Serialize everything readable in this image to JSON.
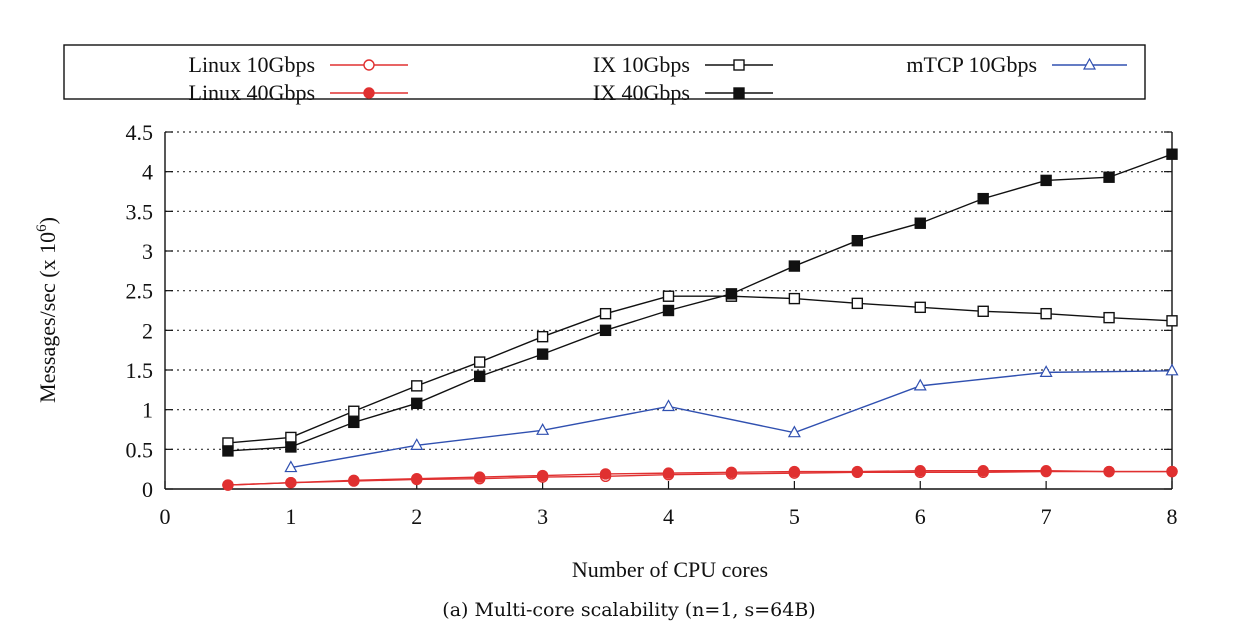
{
  "chart_data": {
    "type": "line",
    "caption": "(a) Multi-core scalability (n=1, s=64B)",
    "xlabel": "Number of CPU cores",
    "ylabel": "Messages/sec (x 10",
    "ylabel_superscript": "6",
    "ylabel_suffix": ")",
    "xlim": [
      0,
      8
    ],
    "ylim": [
      0,
      4.5
    ],
    "xticks": [
      "0",
      "1",
      "2",
      "3",
      "4",
      "5",
      "6",
      "7",
      "8"
    ],
    "yticks": [
      "0",
      "0.5",
      "1",
      "1.5",
      "2",
      "2.5",
      "3",
      "3.5",
      "4",
      "4.5"
    ],
    "grid": "horizontal dotted",
    "legend_placement": "top",
    "series": [
      {
        "name": "Linux 10Gbps",
        "color": "#e03030",
        "marker": "open-circle",
        "x": [
          0.5,
          1,
          1.5,
          2,
          2.5,
          3,
          3.5,
          4,
          4.5,
          5,
          5.5,
          6,
          6.5,
          7,
          7.5,
          8
        ],
        "values": [
          0.05,
          0.08,
          0.1,
          0.12,
          0.13,
          0.15,
          0.16,
          0.18,
          0.19,
          0.2,
          0.21,
          0.21,
          0.21,
          0.22,
          0.22,
          0.22
        ]
      },
      {
        "name": "Linux 40Gbps",
        "color": "#e03030",
        "marker": "filled-circle",
        "x": [
          0.5,
          1,
          1.5,
          2,
          2.5,
          3,
          3.5,
          4,
          4.5,
          5,
          5.5,
          6,
          6.5,
          7,
          7.5,
          8
        ],
        "values": [
          0.05,
          0.08,
          0.11,
          0.13,
          0.15,
          0.17,
          0.19,
          0.2,
          0.21,
          0.22,
          0.22,
          0.23,
          0.23,
          0.23,
          0.22,
          0.22
        ]
      },
      {
        "name": "IX 10Gbps",
        "color": "#111111",
        "marker": "open-square",
        "x": [
          0.5,
          1,
          1.5,
          2,
          2.5,
          3,
          3.5,
          4,
          4.5,
          5,
          5.5,
          6,
          6.5,
          7,
          7.5,
          8
        ],
        "values": [
          0.58,
          0.65,
          0.98,
          1.3,
          1.6,
          1.92,
          2.21,
          2.43,
          2.43,
          2.4,
          2.34,
          2.29,
          2.24,
          2.21,
          2.16,
          2.12
        ]
      },
      {
        "name": "IX 40Gbps",
        "color": "#111111",
        "marker": "filled-square",
        "x": [
          0.5,
          1,
          1.5,
          2,
          2.5,
          3,
          3.5,
          4,
          4.5,
          5,
          5.5,
          6,
          6.5,
          7,
          7.5,
          8
        ],
        "values": [
          0.48,
          0.53,
          0.84,
          1.08,
          1.42,
          1.7,
          2.0,
          2.25,
          2.46,
          2.81,
          3.13,
          3.35,
          3.66,
          3.89,
          3.93,
          4.22
        ]
      },
      {
        "name": "mTCP 10Gbps",
        "color": "#3050b0",
        "marker": "open-triangle",
        "x": [
          1,
          2,
          3,
          4,
          5,
          6,
          7,
          8
        ],
        "values": [
          0.27,
          0.55,
          0.74,
          1.04,
          0.71,
          1.3,
          1.47,
          1.49
        ]
      }
    ]
  }
}
